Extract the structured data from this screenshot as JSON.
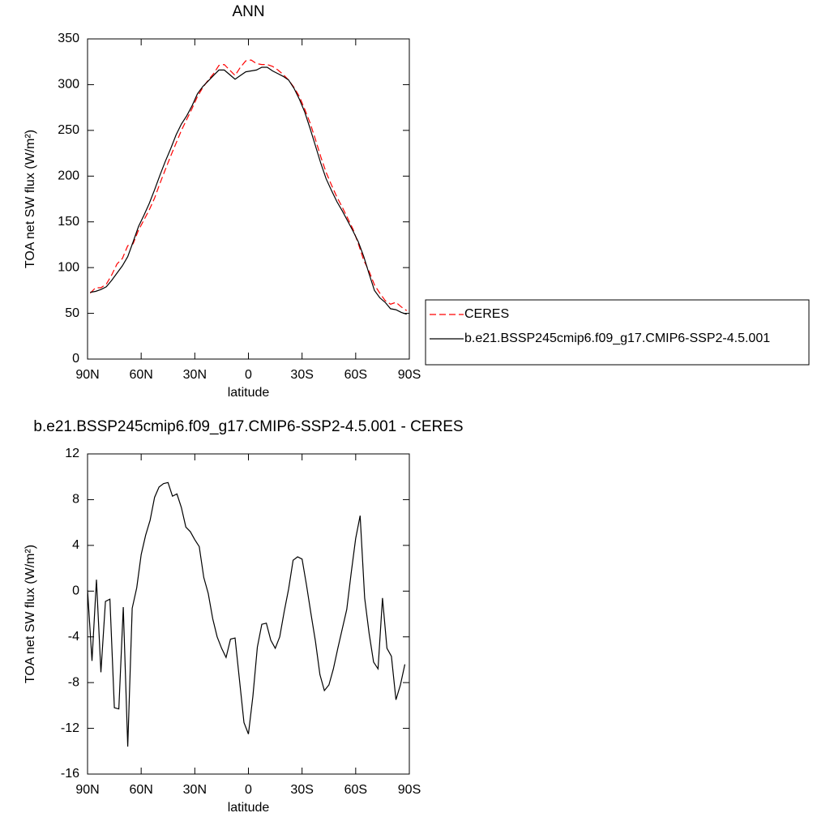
{
  "chart_data": [
    {
      "type": "line",
      "title": "ANN",
      "xlabel": "latitude",
      "ylabel": "TOA net SW flux (W/m²)",
      "x": [
        88.5,
        85.5,
        82.5,
        79.5,
        76.5,
        73.5,
        70.5,
        67.5,
        64.5,
        61.5,
        58.5,
        55.5,
        52.5,
        49.5,
        46.5,
        43.5,
        40.5,
        37.5,
        34.5,
        31.5,
        28.5,
        25.5,
        22.5,
        19.5,
        16.5,
        13.5,
        10.5,
        7.5,
        4.5,
        1.5,
        -1.5,
        -4.5,
        -7.5,
        -10.5,
        -13.5,
        -16.5,
        -19.5,
        -22.5,
        -25.5,
        -28.5,
        -31.5,
        -34.5,
        -37.5,
        -40.5,
        -43.5,
        -46.5,
        -49.5,
        -52.5,
        -55.5,
        -58.5,
        -61.5,
        -64.5,
        -67.5,
        -70.5,
        -73.5,
        -76.5,
        -79.5,
        -82.5,
        -85.5,
        -88.5
      ],
      "series": [
        {
          "name": "CERES",
          "color": "#ff0000",
          "style": "dashed",
          "values": [
            72,
            78,
            78,
            82,
            92,
            104,
            110,
            124,
            126,
            141,
            152,
            163,
            176,
            192,
            207,
            222,
            236,
            250,
            262,
            274,
            287,
            297,
            305,
            312,
            321,
            322,
            316,
            310,
            319,
            326,
            327,
            323,
            322,
            322,
            320,
            316,
            311,
            305,
            297,
            287,
            273,
            258,
            240,
            221,
            204,
            190,
            177,
            166,
            154,
            142,
            126,
            108,
            96,
            81,
            72,
            64,
            60,
            62,
            57,
            53
          ]
        },
        {
          "name": "b.e21.BSSP245cmip6.f09_g17.CMIP6-SSP2-4.5.001",
          "color": "#000000",
          "style": "solid",
          "values": [
            73,
            74,
            76,
            79,
            86,
            94,
            102,
            112,
            128,
            145,
            157,
            170,
            185,
            201,
            216,
            230,
            245,
            257,
            266,
            277,
            290,
            298,
            304,
            310,
            316,
            316,
            311,
            306,
            310,
            314,
            315,
            316,
            319,
            319,
            315,
            312,
            309,
            305,
            296,
            284,
            270,
            252,
            233,
            214,
            197,
            184,
            172,
            162,
            151,
            140,
            128,
            112,
            93,
            75,
            67,
            62,
            55,
            54,
            51,
            49
          ]
        }
      ],
      "xlim": [
        90,
        -90
      ],
      "xticks": [
        {
          "value": 90,
          "label": "90N"
        },
        {
          "value": 60,
          "label": "60N"
        },
        {
          "value": 30,
          "label": "30N"
        },
        0,
        {
          "value": -30,
          "label": "30S"
        },
        {
          "value": -60,
          "label": "60S"
        },
        {
          "value": -90,
          "label": "90S"
        }
      ],
      "ylim": [
        0,
        350
      ],
      "yticks": [
        0,
        50,
        100,
        150,
        200,
        250,
        300,
        350
      ],
      "legend": "right"
    },
    {
      "type": "line",
      "title": "b.e21.BSSP245cmip6.f09_g17.CMIP6-SSP2-4.5.001 - CERES",
      "xlabel": "latitude",
      "ylabel": "TOA net SW flux (W/m²)",
      "x": [
        90,
        87.5,
        85,
        82.5,
        80,
        77.5,
        75,
        72.5,
        70,
        67.5,
        65,
        62.5,
        60,
        57.5,
        55,
        52.5,
        50,
        47.5,
        45,
        42.5,
        40,
        37.5,
        35,
        32.5,
        30,
        27.5,
        25,
        22.5,
        20,
        17.5,
        15,
        12.5,
        10,
        7.5,
        5,
        2.5,
        0,
        -2.5,
        -5,
        -7.5,
        -10,
        -12.5,
        -15,
        -17.5,
        -20,
        -22.5,
        -25,
        -27.5,
        -30,
        -32.5,
        -35,
        -37.5,
        -40,
        -42.5,
        -45,
        -47.5,
        -50,
        -52.5,
        -55,
        -57.5,
        -60,
        -62.5,
        -65,
        -67.5,
        -70,
        -72.5,
        -75,
        -77.5,
        -80,
        -82.5,
        -85,
        -87.5
      ],
      "color": "#000000",
      "values": [
        0.1,
        -6.1,
        1,
        -7.1,
        -0.9,
        -0.7,
        -10.2,
        -10.3,
        -1.4,
        -13.6,
        -1.5,
        0.3,
        3.2,
        4.9,
        6.2,
        8.2,
        9.1,
        9.4,
        9.5,
        8.3,
        8.5,
        7.3,
        5.6,
        5.2,
        4.5,
        3.9,
        1.2,
        -0.2,
        -2.4,
        -4,
        -5,
        -5.8,
        -4.2,
        -4.1,
        -7.8,
        -11.5,
        -12.5,
        -9.2,
        -4.9,
        -2.9,
        -2.8,
        -4.3,
        -5,
        -4,
        -1.8,
        0.2,
        2.7,
        3,
        2.8,
        0.5,
        -2,
        -4.4,
        -7.3,
        -8.7,
        -8.2,
        -6.8,
        -5,
        -3.3,
        -1.6,
        1.6,
        4.6,
        6.6,
        -0.6,
        -3.7,
        -6.2,
        -6.8,
        -0.6,
        -5,
        -5.7,
        -9.5,
        -8.2,
        -6.4
      ],
      "xlim": [
        90,
        -90
      ],
      "xticks": [
        {
          "value": 90,
          "label": "90N"
        },
        {
          "value": 60,
          "label": "60N"
        },
        {
          "value": 30,
          "label": "30N"
        },
        0,
        {
          "value": -30,
          "label": "30S"
        },
        {
          "value": -60,
          "label": "60S"
        },
        {
          "value": -90,
          "label": "90S"
        }
      ],
      "ylim": [
        -16,
        12
      ],
      "yticks": [
        -16,
        -12,
        -8,
        -4,
        0,
        4,
        8,
        12
      ]
    }
  ]
}
